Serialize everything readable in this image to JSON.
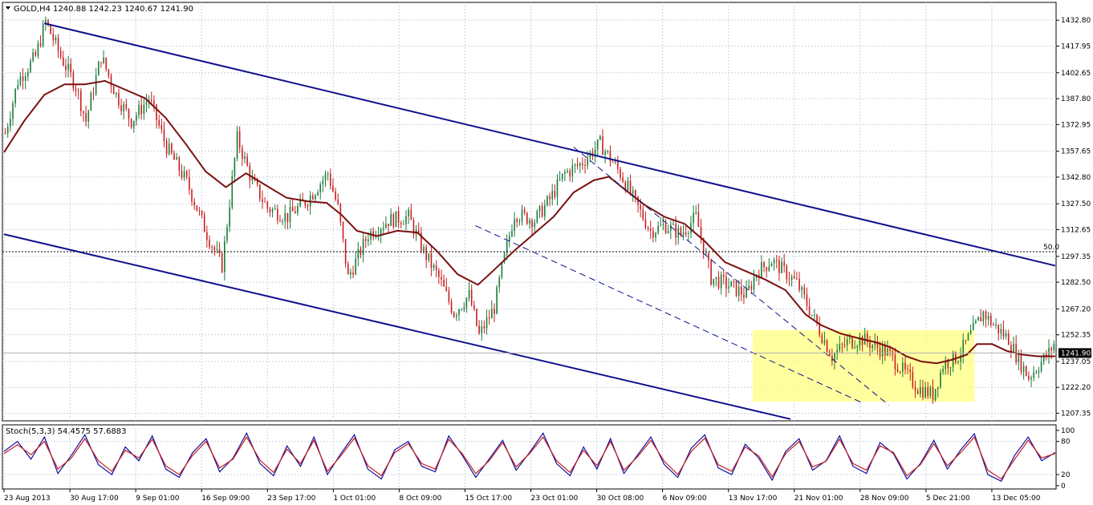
{
  "header": {
    "symbol_label": "GOLD,H4",
    "ohlc": "1240.88 1242.23 1240.67 1241.90"
  },
  "colors": {
    "bullish_candle": "#1b7a3a",
    "bearish_candle": "#c81e1e",
    "moving_average": "#7a1010",
    "channel_lines": "#10108c",
    "highlight_box": "#ffff80",
    "grid": "#c8d4e0",
    "price_tag_bg": "#000000",
    "stoch_main": "#1010a0",
    "stoch_signal": "#c81e1e"
  },
  "chart_data": [
    {
      "type": "candlestick",
      "title": "GOLD,H4",
      "y_ticks": [
        "1432.80",
        "1417.95",
        "1402.65",
        "1387.80",
        "1372.95",
        "1357.65",
        "1342.80",
        "1327.50",
        "1312.65",
        "1297.35",
        "1282.50",
        "1267.20",
        "1252.35",
        "1237.05",
        "1222.20",
        "1207.35"
      ],
      "ylim": [
        1203,
        1443
      ],
      "x_ticks": [
        "23 Aug 2013",
        "30 Aug 17:00",
        "9 Sep 01:00",
        "16 Sep 09:00",
        "23 Sep 17:00",
        "1 Oct 01:00",
        "8 Oct 09:00",
        "15 Oct 17:00",
        "23 Oct 01:00",
        "30 Oct 08:00",
        "6 Nov 09:00",
        "13 Nov 17:00",
        "21 Nov 01:00",
        "28 Nov 09:00",
        "5 Dec 21:00",
        "13 Dec 05:00"
      ],
      "last_price": "1241.90",
      "level_line_label": "50.0",
      "level_line_value": 1300.0,
      "price_path": [
        {
          "x": 0,
          "y": 1368
        },
        {
          "x": 5,
          "y": 1398
        },
        {
          "x": 12,
          "y": 1412
        },
        {
          "x": 16,
          "y": 1432
        },
        {
          "x": 22,
          "y": 1412
        },
        {
          "x": 28,
          "y": 1395
        },
        {
          "x": 32,
          "y": 1375
        },
        {
          "x": 38,
          "y": 1412
        },
        {
          "x": 44,
          "y": 1390
        },
        {
          "x": 50,
          "y": 1375
        },
        {
          "x": 57,
          "y": 1388
        },
        {
          "x": 64,
          "y": 1360
        },
        {
          "x": 72,
          "y": 1340
        },
        {
          "x": 80,
          "y": 1310
        },
        {
          "x": 86,
          "y": 1292
        },
        {
          "x": 92,
          "y": 1365
        },
        {
          "x": 98,
          "y": 1340
        },
        {
          "x": 104,
          "y": 1325
        },
        {
          "x": 112,
          "y": 1320
        },
        {
          "x": 120,
          "y": 1330
        },
        {
          "x": 128,
          "y": 1345
        },
        {
          "x": 132,
          "y": 1325
        },
        {
          "x": 136,
          "y": 1285
        },
        {
          "x": 144,
          "y": 1310
        },
        {
          "x": 152,
          "y": 1318
        },
        {
          "x": 160,
          "y": 1320
        },
        {
          "x": 166,
          "y": 1300
        },
        {
          "x": 172,
          "y": 1285
        },
        {
          "x": 178,
          "y": 1265
        },
        {
          "x": 184,
          "y": 1275
        },
        {
          "x": 188,
          "y": 1252
        },
        {
          "x": 194,
          "y": 1268
        },
        {
          "x": 197,
          "y": 1290
        },
        {
          "x": 202,
          "y": 1322
        },
        {
          "x": 210,
          "y": 1318
        },
        {
          "x": 216,
          "y": 1330
        },
        {
          "x": 222,
          "y": 1345
        },
        {
          "x": 228,
          "y": 1350
        },
        {
          "x": 236,
          "y": 1362
        },
        {
          "x": 244,
          "y": 1345
        },
        {
          "x": 250,
          "y": 1328
        },
        {
          "x": 256,
          "y": 1312
        },
        {
          "x": 262,
          "y": 1315
        },
        {
          "x": 268,
          "y": 1310
        },
        {
          "x": 274,
          "y": 1320
        },
        {
          "x": 280,
          "y": 1285
        },
        {
          "x": 288,
          "y": 1280
        },
        {
          "x": 294,
          "y": 1275
        },
        {
          "x": 298,
          "y": 1288
        },
        {
          "x": 304,
          "y": 1295
        },
        {
          "x": 308,
          "y": 1290
        },
        {
          "x": 314,
          "y": 1282
        },
        {
          "x": 318,
          "y": 1270
        },
        {
          "x": 324,
          "y": 1252
        },
        {
          "x": 328,
          "y": 1240
        },
        {
          "x": 334,
          "y": 1248
        },
        {
          "x": 340,
          "y": 1250
        },
        {
          "x": 346,
          "y": 1245
        },
        {
          "x": 350,
          "y": 1242
        },
        {
          "x": 356,
          "y": 1232
        },
        {
          "x": 362,
          "y": 1222
        },
        {
          "x": 368,
          "y": 1218
        },
        {
          "x": 372,
          "y": 1235
        },
        {
          "x": 378,
          "y": 1240
        },
        {
          "x": 382,
          "y": 1250
        },
        {
          "x": 388,
          "y": 1265
        },
        {
          "x": 392,
          "y": 1258
        },
        {
          "x": 398,
          "y": 1250
        },
        {
          "x": 402,
          "y": 1238
        },
        {
          "x": 406,
          "y": 1228
        },
        {
          "x": 410,
          "y": 1235
        },
        {
          "x": 414,
          "y": 1242
        },
        {
          "x": 417,
          "y": 1250
        }
      ],
      "moving_average": [
        {
          "x": 0,
          "y": 1357
        },
        {
          "x": 8,
          "y": 1375
        },
        {
          "x": 16,
          "y": 1390
        },
        {
          "x": 24,
          "y": 1396
        },
        {
          "x": 32,
          "y": 1396
        },
        {
          "x": 40,
          "y": 1398
        },
        {
          "x": 48,
          "y": 1393
        },
        {
          "x": 56,
          "y": 1388
        },
        {
          "x": 64,
          "y": 1377
        },
        {
          "x": 72,
          "y": 1362
        },
        {
          "x": 80,
          "y": 1346
        },
        {
          "x": 88,
          "y": 1337
        },
        {
          "x": 96,
          "y": 1345
        },
        {
          "x": 104,
          "y": 1338
        },
        {
          "x": 112,
          "y": 1331
        },
        {
          "x": 120,
          "y": 1329
        },
        {
          "x": 128,
          "y": 1328
        },
        {
          "x": 134,
          "y": 1321
        },
        {
          "x": 140,
          "y": 1312
        },
        {
          "x": 148,
          "y": 1309
        },
        {
          "x": 156,
          "y": 1312
        },
        {
          "x": 164,
          "y": 1311
        },
        {
          "x": 172,
          "y": 1300
        },
        {
          "x": 180,
          "y": 1287
        },
        {
          "x": 188,
          "y": 1281
        },
        {
          "x": 194,
          "y": 1289
        },
        {
          "x": 202,
          "y": 1300
        },
        {
          "x": 210,
          "y": 1310
        },
        {
          "x": 218,
          "y": 1320
        },
        {
          "x": 226,
          "y": 1334
        },
        {
          "x": 234,
          "y": 1341
        },
        {
          "x": 240,
          "y": 1343
        },
        {
          "x": 246,
          "y": 1336
        },
        {
          "x": 254,
          "y": 1327
        },
        {
          "x": 262,
          "y": 1320
        },
        {
          "x": 270,
          "y": 1316
        },
        {
          "x": 278,
          "y": 1306
        },
        {
          "x": 286,
          "y": 1294
        },
        {
          "x": 294,
          "y": 1289
        },
        {
          "x": 302,
          "y": 1284
        },
        {
          "x": 310,
          "y": 1278
        },
        {
          "x": 318,
          "y": 1264
        },
        {
          "x": 324,
          "y": 1258
        },
        {
          "x": 332,
          "y": 1253
        },
        {
          "x": 340,
          "y": 1250
        },
        {
          "x": 346,
          "y": 1248
        },
        {
          "x": 352,
          "y": 1245
        },
        {
          "x": 358,
          "y": 1240
        },
        {
          "x": 364,
          "y": 1237
        },
        {
          "x": 370,
          "y": 1236
        },
        {
          "x": 376,
          "y": 1238
        },
        {
          "x": 382,
          "y": 1241
        },
        {
          "x": 386,
          "y": 1247
        },
        {
          "x": 392,
          "y": 1247
        },
        {
          "x": 398,
          "y": 1243
        },
        {
          "x": 404,
          "y": 1241
        },
        {
          "x": 410,
          "y": 1240
        },
        {
          "x": 417,
          "y": 1240
        }
      ],
      "channel_upper": [
        {
          "x": 16,
          "y": 1431
        },
        {
          "x": 417,
          "y": 1292
        }
      ],
      "channel_lower": [
        {
          "x": 0,
          "y": 1310
        },
        {
          "x": 312,
          "y": 1204
        }
      ],
      "dashed_upper": [
        {
          "x": 226,
          "y": 1360
        },
        {
          "x": 351,
          "y": 1212
        }
      ],
      "dashed_lower": [
        {
          "x": 187,
          "y": 1315
        },
        {
          "x": 341,
          "y": 1213
        }
      ],
      "highlight_box": {
        "x0": 297,
        "x1": 385,
        "y0": 1214,
        "y1": 1255
      }
    },
    {
      "type": "line",
      "title": "Stoch(5,3,3) 54.4575 57.6883",
      "y_ticks": [
        "100",
        "80",
        "20",
        "0"
      ],
      "ylim": [
        -6,
        110
      ],
      "series": [
        {
          "color": "#1010a0",
          "values": [
            62,
            80,
            48,
            88,
            22,
            55,
            92,
            38,
            20,
            70,
            45,
            90,
            30,
            15,
            60,
            85,
            25,
            50,
            95,
            40,
            18,
            72,
            35,
            88,
            20,
            58,
            92,
            30,
            12,
            65,
            80,
            35,
            25,
            90,
            55,
            15,
            48,
            82,
            28,
            60,
            95,
            40,
            18,
            70,
            30,
            85,
            22,
            55,
            88,
            38,
            15,
            68,
            92,
            32,
            20,
            75,
            50,
            10,
            62,
            85,
            28,
            45,
            90,
            35,
            22,
            78,
            58,
            12,
            40,
            82,
            30,
            65,
            94,
            20,
            8,
            55,
            88,
            45,
            60
          ]
        },
        {
          "color": "#c81e1e",
          "values": [
            58,
            74,
            56,
            80,
            30,
            50,
            85,
            45,
            26,
            64,
            50,
            84,
            36,
            20,
            55,
            80,
            32,
            48,
            88,
            46,
            24,
            66,
            40,
            82,
            26,
            54,
            86,
            36,
            18,
            60,
            76,
            40,
            30,
            84,
            58,
            22,
            45,
            78,
            34,
            58,
            88,
            45,
            24,
            64,
            36,
            80,
            28,
            52,
            82,
            44,
            20,
            62,
            86,
            38,
            26,
            70,
            54,
            16,
            58,
            80,
            34,
            44,
            84,
            40,
            28,
            72,
            60,
            18,
            38,
            76,
            36,
            60,
            88,
            28,
            12,
            48,
            82,
            50,
            58
          ]
        }
      ]
    }
  ]
}
